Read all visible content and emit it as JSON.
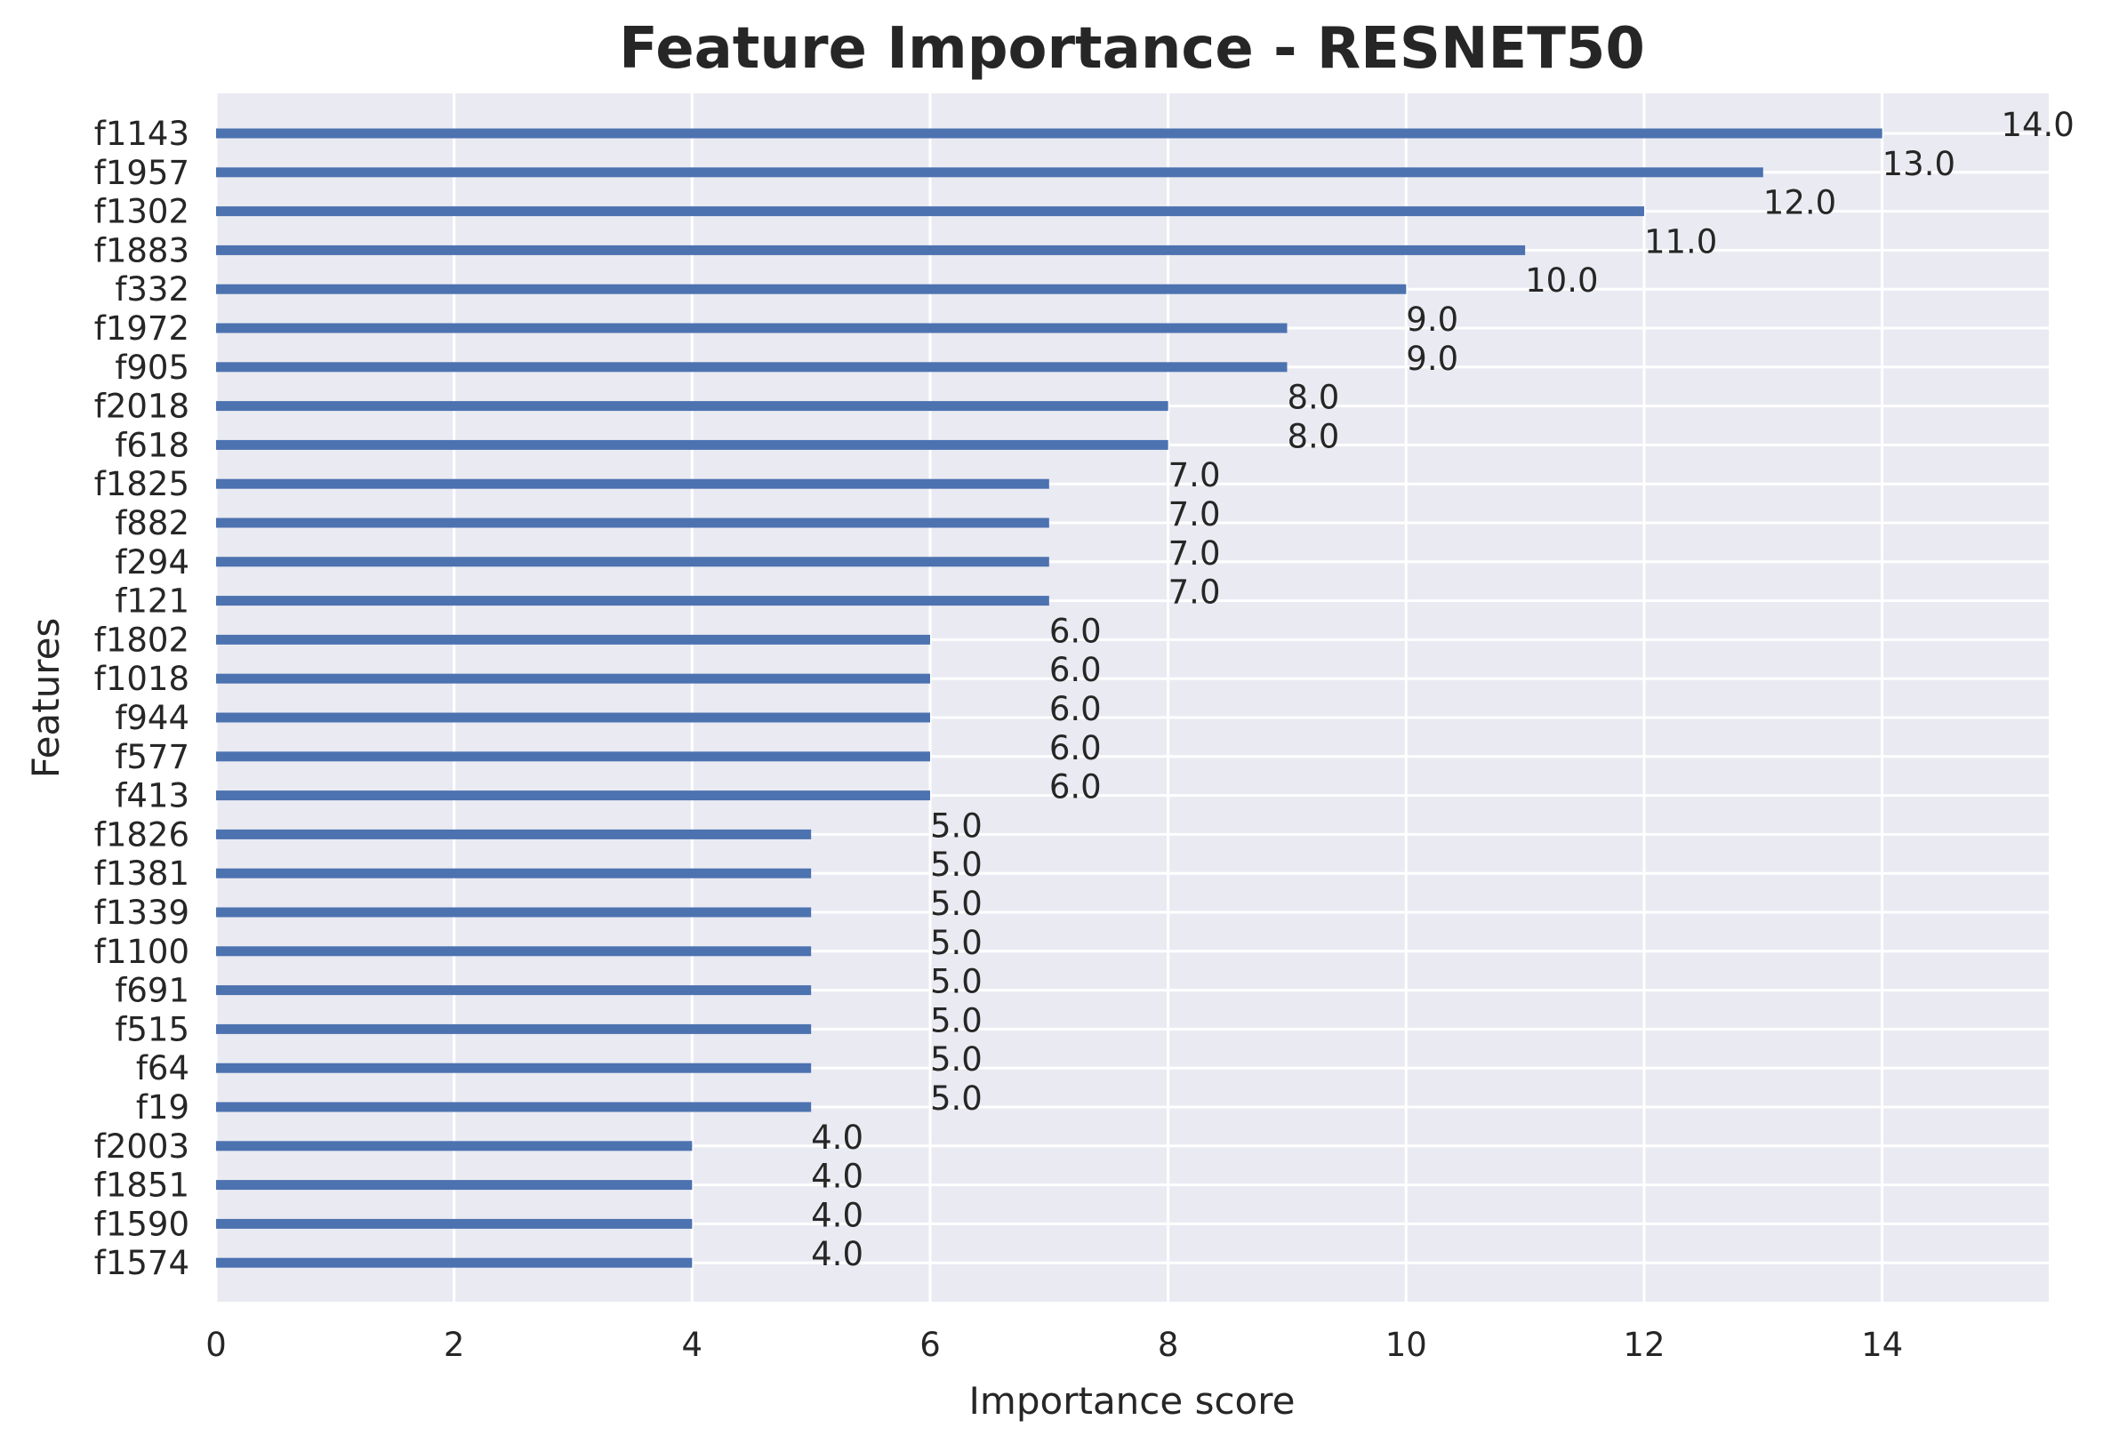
{
  "colors": {
    "plot_background": "#EAEAF2",
    "grid": "#FFFFFF",
    "bar": "#4C72B0",
    "text": "#262626"
  },
  "chart_data": {
    "type": "bar",
    "orientation": "horizontal",
    "title": "Feature Importance - RESNET50",
    "xlabel": "Importance score",
    "ylabel": "Features",
    "xlim": [
      0,
      15.4
    ],
    "xticks": [
      0,
      2,
      4,
      6,
      8,
      10,
      12,
      14
    ],
    "grid": true,
    "categories": [
      "f1143",
      "f1957",
      "f1302",
      "f1883",
      "f332",
      "f1972",
      "f905",
      "f2018",
      "f618",
      "f1825",
      "f882",
      "f294",
      "f121",
      "f1802",
      "f1018",
      "f944",
      "f577",
      "f413",
      "f1826",
      "f1381",
      "f1339",
      "f1100",
      "f691",
      "f515",
      "f64",
      "f19",
      "f2003",
      "f1851",
      "f1590",
      "f1574"
    ],
    "values": [
      14.0,
      13.0,
      12.0,
      11.0,
      10.0,
      9.0,
      9.0,
      8.0,
      8.0,
      7.0,
      7.0,
      7.0,
      7.0,
      6.0,
      6.0,
      6.0,
      6.0,
      6.0,
      5.0,
      5.0,
      5.0,
      5.0,
      5.0,
      5.0,
      5.0,
      5.0,
      4.0,
      4.0,
      4.0,
      4.0
    ],
    "data_labels": [
      "14.0",
      "13.0",
      "12.0",
      "11.0",
      "10.0",
      "9.0",
      "9.0",
      "8.0",
      "8.0",
      "7.0",
      "7.0",
      "7.0",
      "7.0",
      "6.0",
      "6.0",
      "6.0",
      "6.0",
      "6.0",
      "5.0",
      "5.0",
      "5.0",
      "5.0",
      "5.0",
      "5.0",
      "5.0",
      "5.0",
      "4.0",
      "4.0",
      "4.0",
      "4.0"
    ]
  }
}
